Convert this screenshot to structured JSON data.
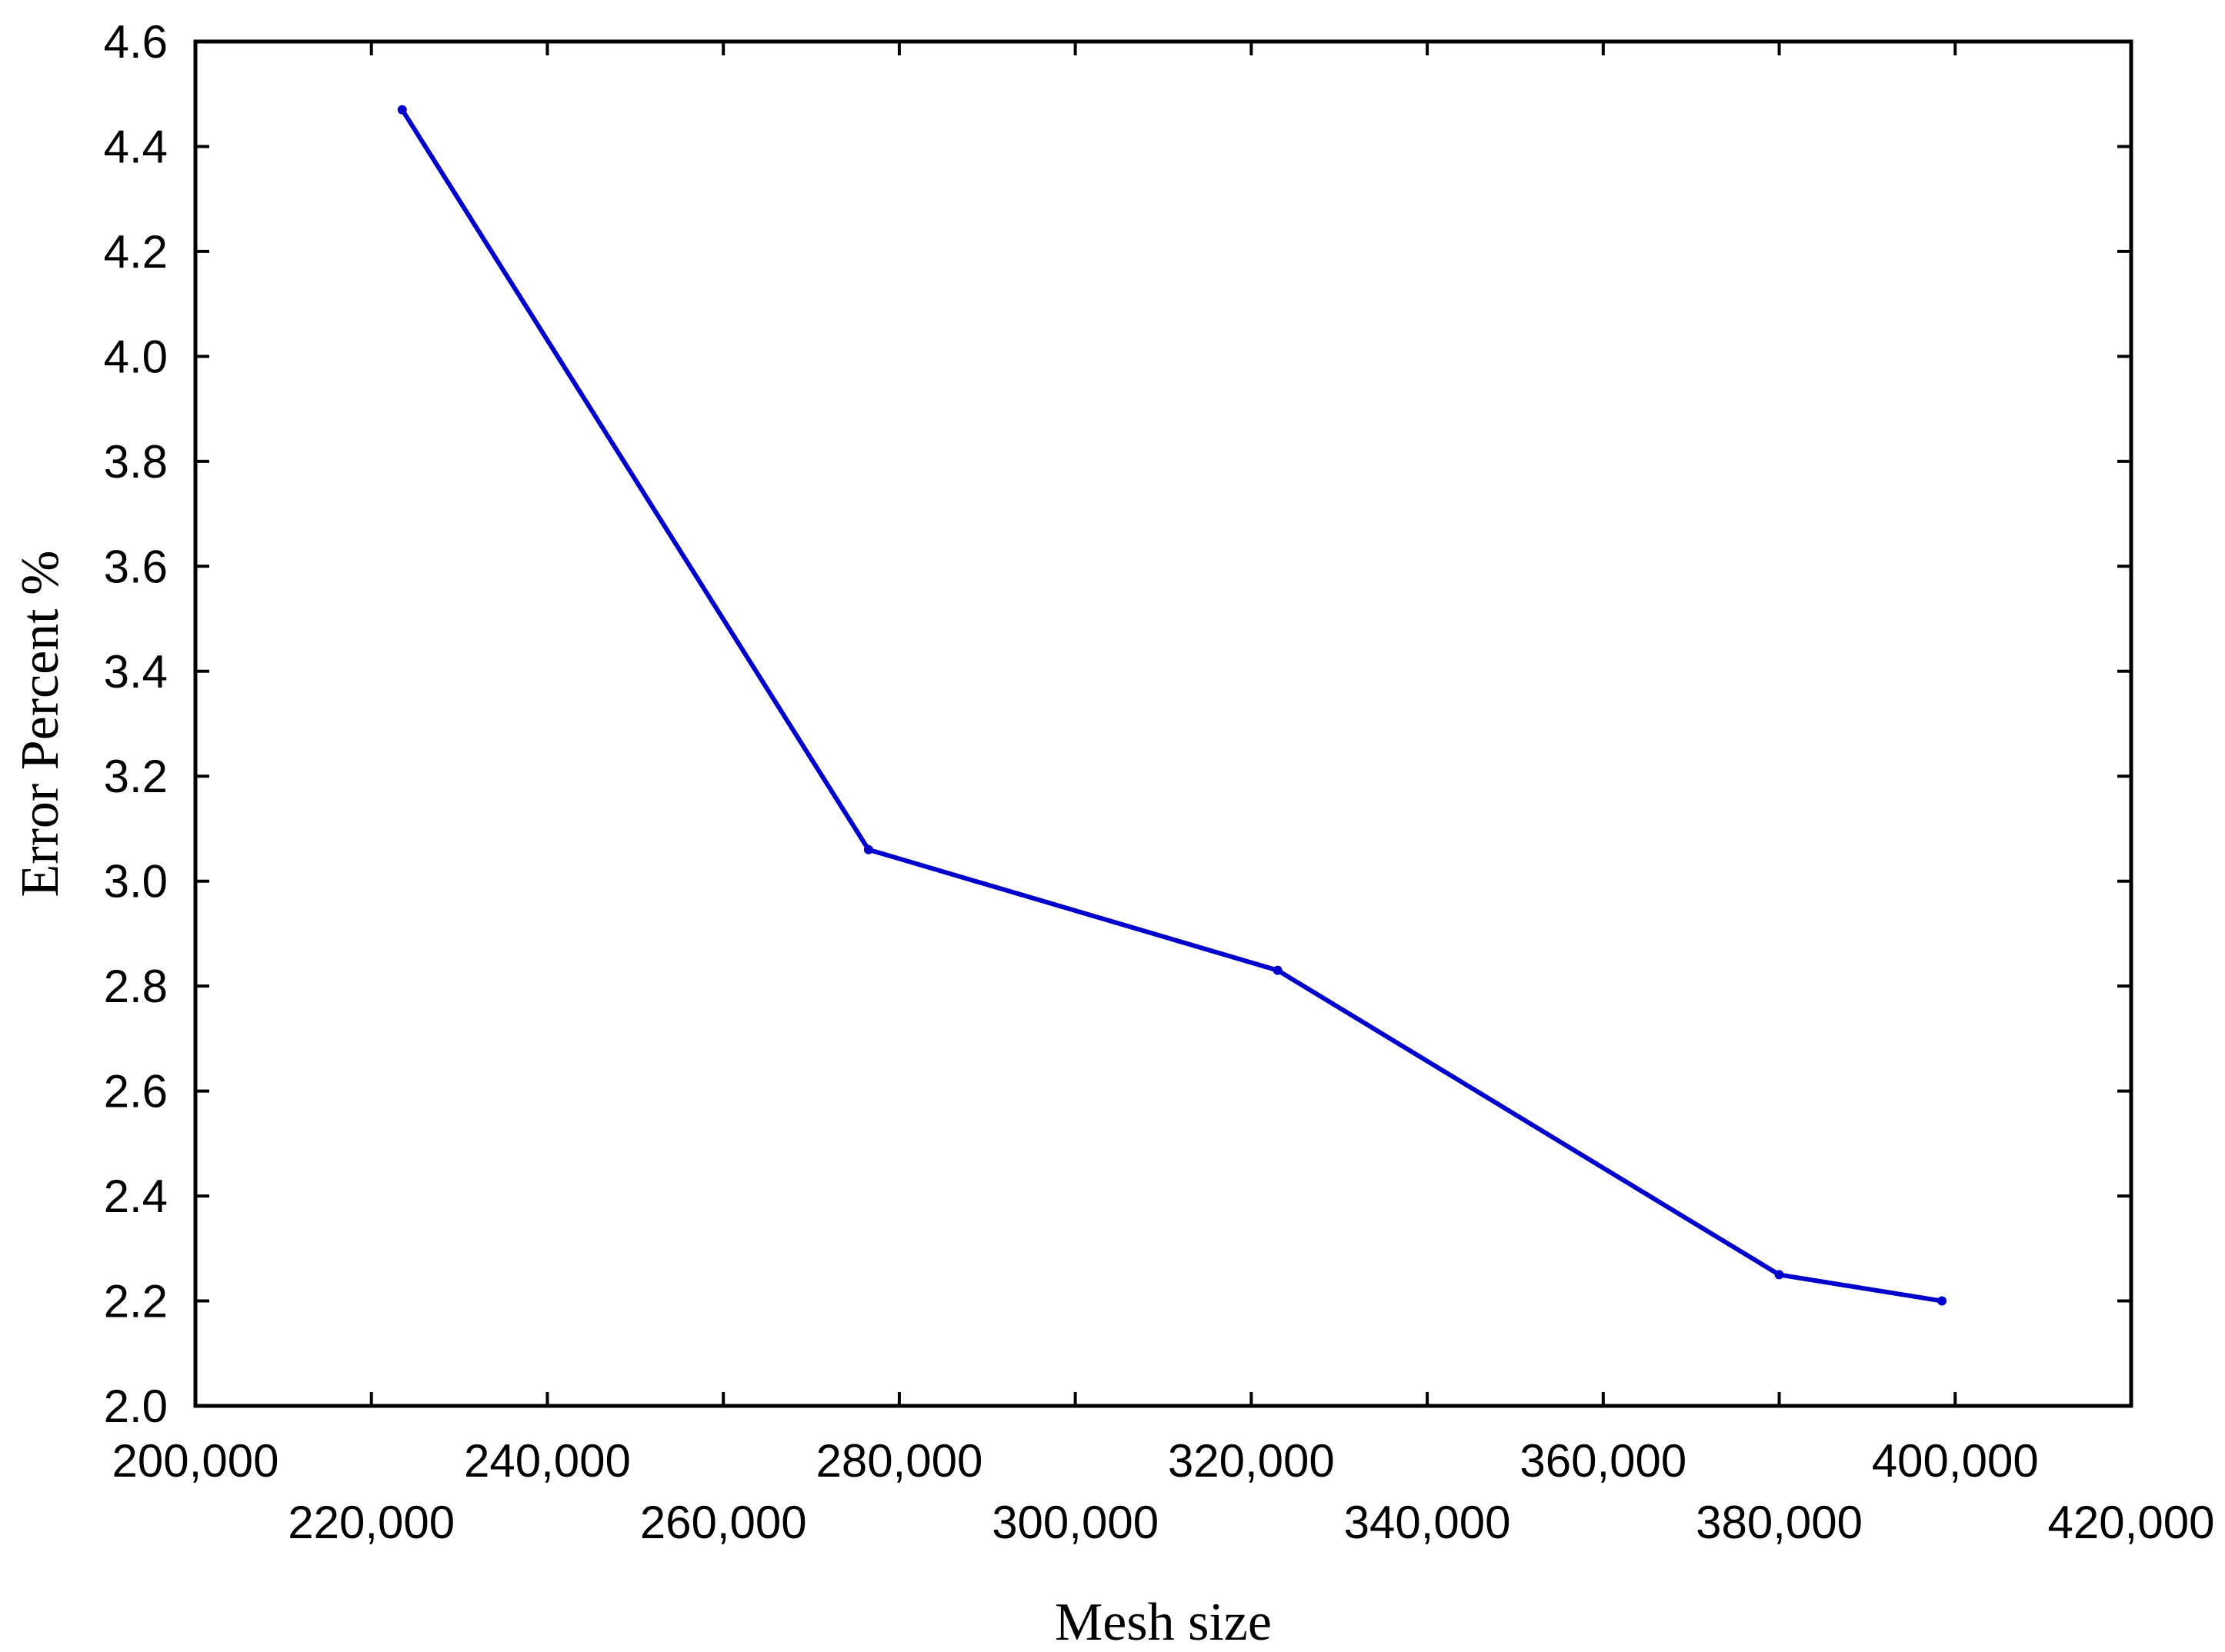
{
  "chart_data": {
    "type": "line",
    "title": "",
    "xlabel": "Mesh size",
    "ylabel": "Error Percent %",
    "xlim": [
      200000,
      420000
    ],
    "ylim": [
      2.0,
      4.6
    ],
    "x_ticks": [
      200000,
      220000,
      240000,
      260000,
      280000,
      300000,
      320000,
      340000,
      360000,
      380000,
      400000,
      420000
    ],
    "x_tick_labels": [
      "200,000",
      "220,000",
      "240,000",
      "260,000",
      "280,000",
      "300,000",
      "320,000",
      "340,000",
      "360,000",
      "380,000",
      "400,000",
      "420,000"
    ],
    "y_ticks": [
      2.0,
      2.2,
      2.4,
      2.6,
      2.8,
      3.0,
      3.2,
      3.4,
      3.6,
      3.8,
      4.0,
      4.2,
      4.4,
      4.6
    ],
    "y_tick_labels": [
      "2.0",
      "2.2",
      "2.4",
      "2.6",
      "2.8",
      "3.0",
      "3.2",
      "3.4",
      "3.6",
      "3.8",
      "4.0",
      "4.2",
      "4.4",
      "4.6"
    ],
    "grid": false,
    "legend": "none",
    "series": [
      {
        "color": "#0000cc",
        "x": [
          223500,
          276500,
          323000,
          380000,
          398500
        ],
        "y": [
          4.47,
          3.06,
          2.83,
          2.25,
          2.2
        ]
      }
    ]
  }
}
